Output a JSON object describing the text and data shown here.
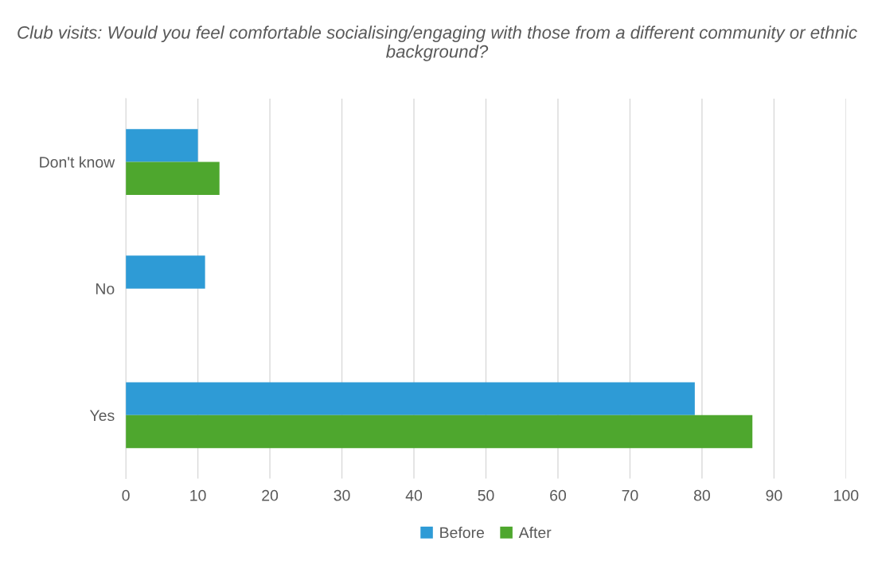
{
  "chart_data": {
    "type": "bar",
    "orientation": "horizontal",
    "title": "Club visits: Would you feel comfortable socialising/engaging with those from a different community or ethnic background?",
    "categories": [
      "Don't know",
      "No",
      "Yes"
    ],
    "series": [
      {
        "name": "Before",
        "color": "#2e9bd6",
        "values": [
          10,
          11,
          79
        ]
      },
      {
        "name": "After",
        "color": "#4ea72e",
        "values": [
          13,
          null,
          87
        ]
      }
    ],
    "xlim": [
      0,
      100
    ],
    "xticks": [
      0,
      10,
      20,
      30,
      40,
      50,
      60,
      70,
      80,
      90,
      100
    ],
    "grid": "x",
    "legend": "bottom"
  }
}
